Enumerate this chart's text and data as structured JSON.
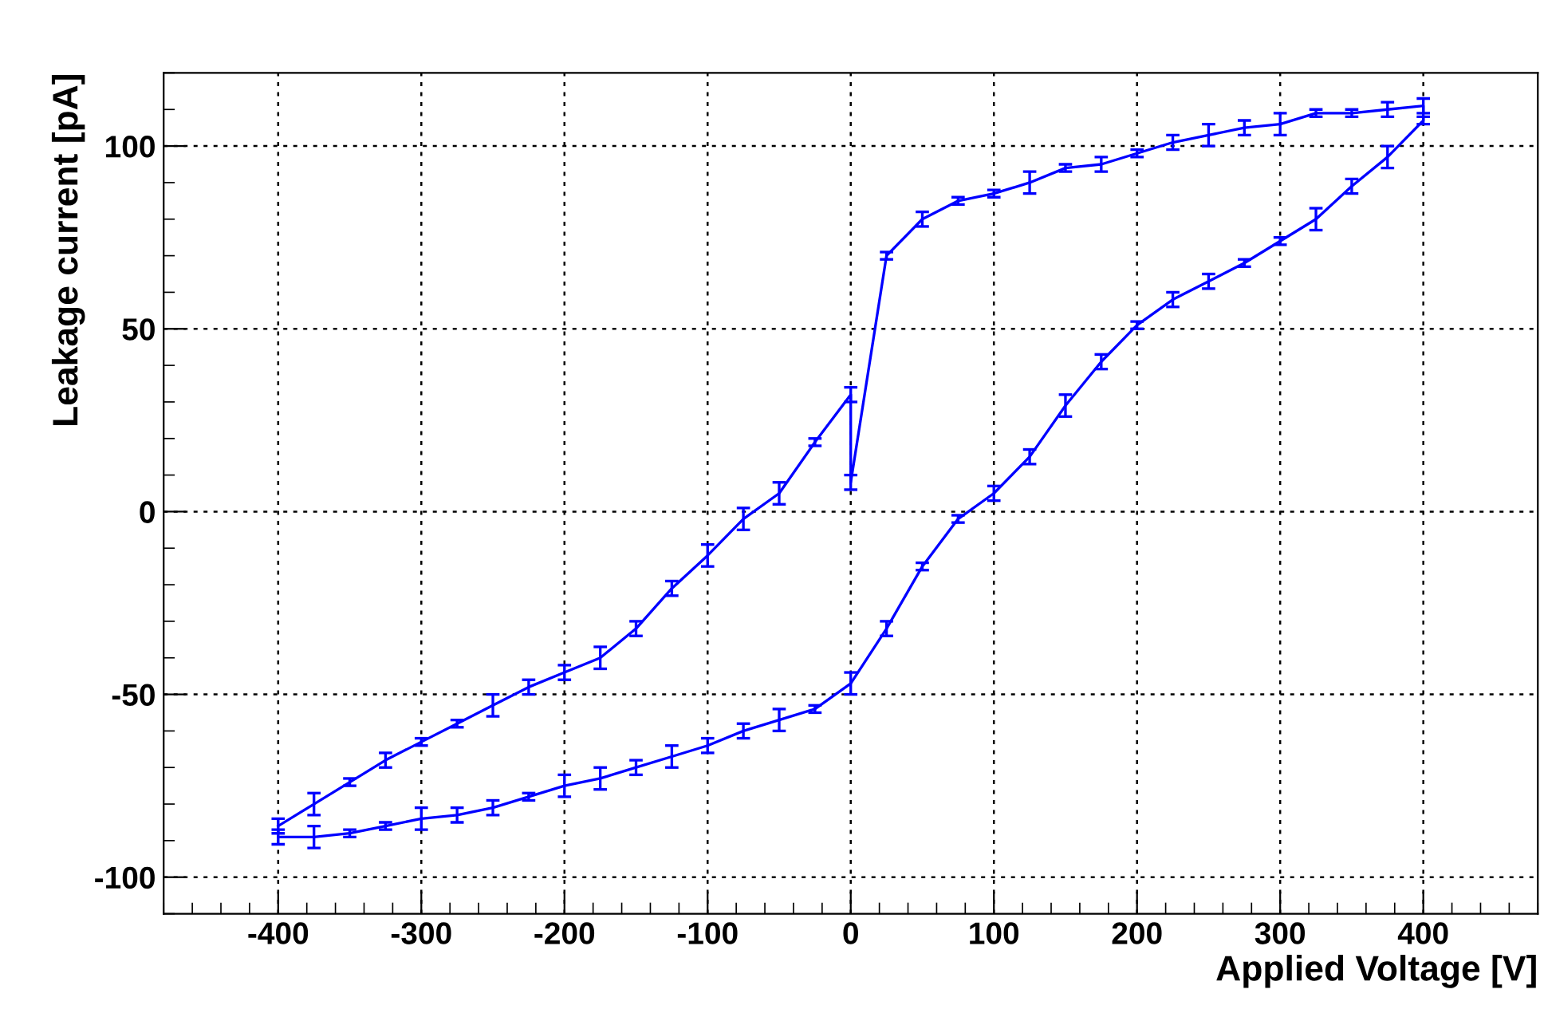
{
  "chart_data": {
    "type": "line",
    "xlabel": "Applied Voltage [V]",
    "ylabel": "Leakage current [pA]",
    "xlim": [
      -480,
      480
    ],
    "ylim": [
      -110,
      120
    ],
    "xticks": [
      -400,
      -300,
      -200,
      -100,
      0,
      100,
      200,
      300,
      400
    ],
    "yticks": [
      -100,
      -50,
      0,
      50,
      100
    ],
    "grid": true,
    "marker": "none",
    "line_style": "solid",
    "series": [
      {
        "color": "#0000ff",
        "x": [
          -400,
          -375,
          -350,
          -325,
          -300,
          -275,
          -250,
          -225,
          -200,
          -175,
          -150,
          -125,
          -100,
          -75,
          -50,
          -25,
          0,
          0,
          25,
          50,
          75,
          100,
          125,
          150,
          175,
          200,
          225,
          250,
          275,
          300,
          325,
          350,
          375,
          400,
          400,
          375,
          350,
          325,
          300,
          275,
          250,
          225,
          200,
          175,
          150,
          125,
          100,
          75,
          50,
          25,
          0,
          -25,
          -50,
          -75,
          -100,
          -125,
          -150,
          -175,
          -200,
          -225,
          -250,
          -275,
          -300,
          -325,
          -350,
          -375,
          -400
        ],
        "values": [
          -86,
          -80,
          -74,
          -68,
          -63,
          -58,
          -53,
          -48,
          -44,
          -40,
          -32,
          -21,
          -12,
          -2,
          5,
          19,
          32,
          8,
          70,
          80,
          85,
          87,
          90,
          94,
          95,
          98,
          101,
          103,
          105,
          106,
          109,
          109,
          110,
          111,
          107,
          97,
          89,
          80,
          74,
          68,
          63,
          58,
          51,
          41,
          29,
          15,
          5,
          -2,
          -15,
          -32,
          -47,
          -54,
          -57,
          -60,
          -64,
          -67,
          -70,
          -73,
          -75,
          -78,
          -81,
          -83,
          -84,
          -86,
          -88,
          -89,
          -89
        ],
        "errors": [
          2,
          3,
          1,
          2,
          1,
          1,
          3,
          2,
          2,
          3,
          2,
          2,
          3,
          3,
          3,
          1,
          2,
          2,
          1,
          2,
          1,
          1,
          3,
          1,
          2,
          1,
          2,
          3,
          2,
          3,
          1,
          1,
          2,
          2,
          1,
          3,
          2,
          3,
          1,
          1,
          2,
          2,
          1,
          2,
          3,
          2,
          2,
          1,
          1,
          2,
          3,
          1,
          3,
          2,
          2,
          3,
          2,
          3,
          3,
          1,
          2,
          2,
          3,
          1,
          1,
          3,
          2
        ]
      }
    ]
  }
}
